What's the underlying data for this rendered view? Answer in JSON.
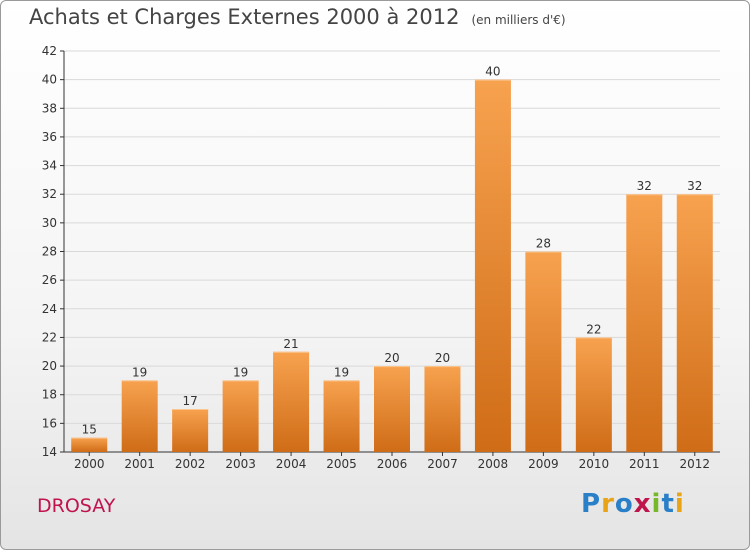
{
  "header": {
    "title": "Achats et Charges Externes 2000 à 2012",
    "unit": "(en milliers d'€)"
  },
  "footer": {
    "commune": "DROSAY",
    "brand": "Proxiti",
    "brand_letter_colors": [
      "#2a7fc9",
      "#e8a317",
      "#2a7fc9",
      "#c0144c",
      "#77b82a",
      "#2a7fc9",
      "#e8a317"
    ]
  },
  "colors": {
    "bar_light": "#f7a24f",
    "bar_dark": "#cf6c17",
    "axis": "#333333",
    "grid": "#d9d9d9",
    "title": "#444444",
    "commune": "#c0144c"
  },
  "chart_data": {
    "type": "bar",
    "title": "Achats et Charges Externes 2000 à 2012",
    "subtitle": "(en milliers d'€)",
    "xlabel": "",
    "ylabel": "",
    "categories": [
      "2000",
      "2001",
      "2002",
      "2003",
      "2004",
      "2005",
      "2006",
      "2007",
      "2008",
      "2009",
      "2010",
      "2011",
      "2012"
    ],
    "values": [
      15,
      19,
      17,
      19,
      21,
      19,
      20,
      20,
      40,
      28,
      22,
      32,
      32
    ],
    "ylim": [
      14,
      42
    ],
    "yticks": [
      14,
      16,
      18,
      20,
      22,
      24,
      26,
      28,
      30,
      32,
      34,
      36,
      38,
      40,
      42
    ],
    "grid": true,
    "legend": "none",
    "data_labels": true
  }
}
